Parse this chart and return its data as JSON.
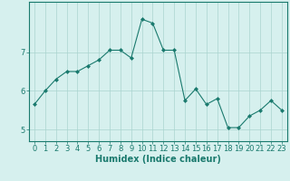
{
  "x": [
    0,
    1,
    2,
    3,
    4,
    5,
    6,
    7,
    8,
    9,
    10,
    11,
    12,
    13,
    14,
    15,
    16,
    17,
    18,
    19,
    20,
    21,
    22,
    23
  ],
  "y": [
    5.65,
    6.0,
    6.3,
    6.5,
    6.5,
    6.65,
    6.8,
    7.05,
    7.05,
    6.85,
    7.85,
    7.75,
    7.05,
    7.05,
    5.75,
    6.05,
    5.65,
    5.8,
    5.05,
    5.05,
    5.35,
    5.5,
    5.75,
    5.5
  ],
  "line_color": "#1a7a6e",
  "marker": "D",
  "marker_size": 2.0,
  "bg_color": "#d6f0ee",
  "grid_color": "#aad4cf",
  "xlabel": "Humidex (Indice chaleur)",
  "ylabel": "",
  "xlim": [
    -0.5,
    23.5
  ],
  "ylim": [
    4.7,
    8.3
  ],
  "yticks": [
    5,
    6,
    7
  ],
  "xtick_labels": [
    "0",
    "1",
    "2",
    "3",
    "4",
    "5",
    "6",
    "7",
    "8",
    "9",
    "10",
    "11",
    "12",
    "13",
    "14",
    "15",
    "16",
    "17",
    "18",
    "19",
    "20",
    "21",
    "22",
    "23"
  ],
  "title": "",
  "label_fontsize": 7.0,
  "tick_fontsize": 6.0,
  "linewidth": 0.8
}
